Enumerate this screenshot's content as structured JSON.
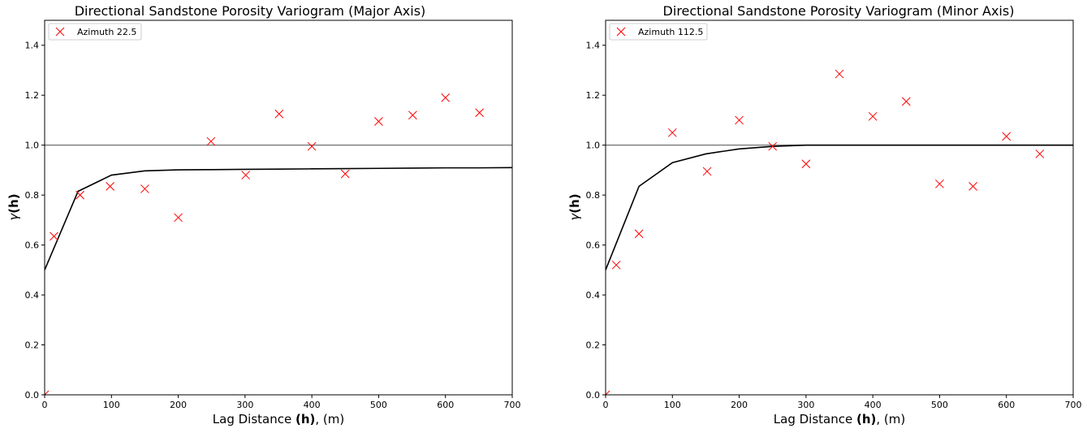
{
  "chart_data": [
    {
      "type": "scatter",
      "title": "Directional Sandstone Porosity Variogram (Major Axis)",
      "xlabel_prefix": "Lag Distance ",
      "xlabel_bold": "(h)",
      "xlabel_suffix": ", (m)",
      "ylabel_greek": "γ",
      "ylabel_bold": "(h)",
      "xlim": [
        0,
        700
      ],
      "ylim": [
        0,
        1.5
      ],
      "xticks": [
        0,
        100,
        200,
        300,
        400,
        500,
        600,
        700
      ],
      "yticks": [
        0.0,
        0.2,
        0.4,
        0.6,
        0.8,
        1.0,
        1.2,
        1.4
      ],
      "legend_position": "top-left",
      "sill": 1.0,
      "colors": {
        "points": "#ff0000",
        "model": "#000000",
        "sill": "#808080"
      },
      "series": [
        {
          "name": "Azimuth 22.5",
          "kind": "scatter",
          "x": [
            0,
            14,
            53,
            98,
            150,
            200,
            249,
            301,
            351,
            400,
            450,
            500,
            551,
            600,
            651
          ],
          "y": [
            0.0,
            0.635,
            0.8,
            0.835,
            0.825,
            0.71,
            1.015,
            0.88,
            1.125,
            0.995,
            0.885,
            1.095,
            1.12,
            1.19,
            1.13
          ]
        },
        {
          "kind": "line",
          "x": [
            0,
            50,
            100,
            150,
            200,
            250,
            300,
            350,
            400,
            450,
            500,
            550,
            600,
            650,
            700
          ],
          "y": [
            0.5,
            0.815,
            0.88,
            0.897,
            0.901,
            0.902,
            0.903,
            0.904,
            0.905,
            0.906,
            0.907,
            0.908,
            0.909,
            0.909,
            0.91
          ]
        }
      ]
    },
    {
      "type": "scatter",
      "title": "Directional Sandstone Porosity Variogram (Minor Axis)",
      "xlabel_prefix": "Lag Distance ",
      "xlabel_bold": "(h)",
      "xlabel_suffix": ", (m)",
      "ylabel_greek": "γ",
      "ylabel_bold": "(h)",
      "xlim": [
        0,
        700
      ],
      "ylim": [
        0,
        1.5
      ],
      "xticks": [
        0,
        100,
        200,
        300,
        400,
        500,
        600,
        700
      ],
      "yticks": [
        0.0,
        0.2,
        0.4,
        0.6,
        0.8,
        1.0,
        1.2,
        1.4
      ],
      "legend_position": "top-left",
      "sill": 1.0,
      "colors": {
        "points": "#ff0000",
        "model": "#000000",
        "sill": "#808080"
      },
      "series": [
        {
          "name": "Azimuth 112.5",
          "kind": "scatter",
          "x": [
            0,
            16,
            50,
            100,
            152,
            200,
            250,
            300,
            350,
            400,
            450,
            500,
            550,
            600,
            650
          ],
          "y": [
            0.0,
            0.52,
            0.645,
            1.05,
            0.895,
            1.1,
            0.995,
            0.925,
            1.285,
            1.115,
            1.175,
            0.845,
            0.835,
            1.035,
            0.965
          ]
        },
        {
          "kind": "line",
          "x": [
            0,
            50,
            100,
            150,
            200,
            250,
            300,
            350,
            400,
            450,
            500,
            550,
            600,
            650,
            700
          ],
          "y": [
            0.5,
            0.835,
            0.93,
            0.965,
            0.985,
            0.995,
            1.0,
            1.0,
            1.0,
            1.0,
            1.0,
            1.0,
            1.0,
            1.0,
            1.0
          ]
        }
      ]
    }
  ]
}
